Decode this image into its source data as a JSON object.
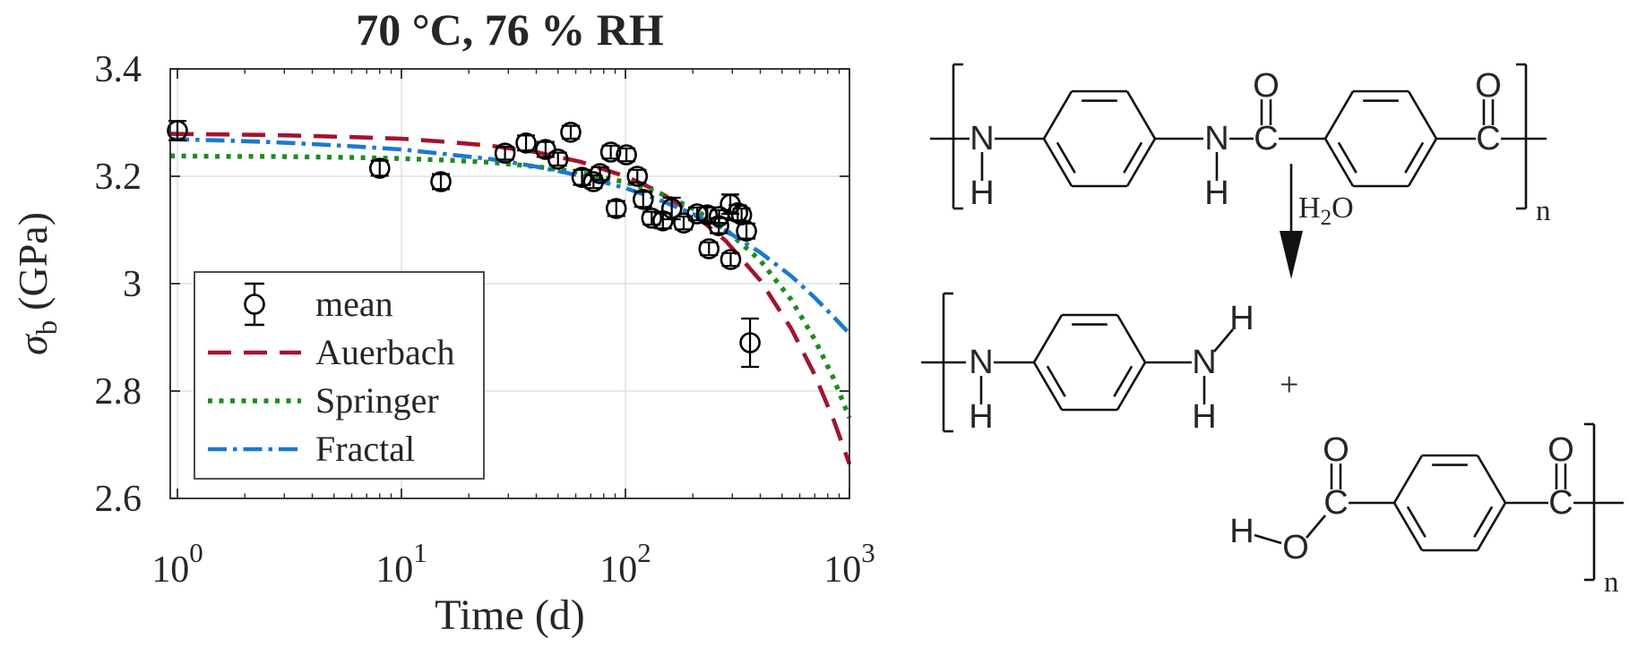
{
  "figure": {
    "kind": "scientific-figure",
    "panels": [
      "strength-vs-time-plot",
      "hydrolysis-reaction-scheme"
    ]
  },
  "chart_data": {
    "type": "scatter",
    "title": "70 °C, 76 % RH",
    "xlabel": "Time (d)",
    "ylabel": "σ_b (GPa)",
    "ylabel_parts": {
      "sigma": "σ",
      "sub": "b",
      "units": "(GPa)"
    },
    "x_scale": "log",
    "xlim": [
      0.93,
      1000
    ],
    "ylim": [
      2.6,
      3.4
    ],
    "grid": true,
    "x_tick_labels": [
      {
        "base": "10",
        "exp": "0",
        "value": 1
      },
      {
        "base": "10",
        "exp": "1",
        "value": 10
      },
      {
        "base": "10",
        "exp": "2",
        "value": 100
      },
      {
        "base": "10",
        "exp": "3",
        "value": 1000
      }
    ],
    "y_tick_labels": [
      "3.4",
      "3.2",
      "3",
      "2.8",
      "2.6"
    ],
    "y_tick_values": [
      3.4,
      3.2,
      3.0,
      2.8,
      2.6
    ],
    "grid_y_values": [
      3.2,
      3.0,
      2.8
    ],
    "legend_position": "lower-left",
    "colors": {
      "grid": "#d9d9d9",
      "axis": "#262626",
      "marker": "#000000"
    },
    "series": [
      {
        "name": "mean",
        "type": "scatter-errorbar",
        "color": "#000000",
        "points": [
          [
            1.0,
            3.285,
            0.018
          ],
          [
            8,
            3.215,
            0.014
          ],
          [
            15,
            3.19,
            0.014
          ],
          [
            29,
            3.243,
            0.012
          ],
          [
            36,
            3.262,
            0.014
          ],
          [
            44,
            3.25,
            0.014
          ],
          [
            50,
            3.232,
            0.012
          ],
          [
            57,
            3.282,
            0.012
          ],
          [
            64,
            3.198,
            0.014
          ],
          [
            72,
            3.19,
            0.012
          ],
          [
            77,
            3.205,
            0.012
          ],
          [
            86,
            3.245,
            0.012
          ],
          [
            91,
            3.14,
            0.014
          ],
          [
            101,
            3.24,
            0.012
          ],
          [
            113,
            3.2,
            0.012
          ],
          [
            120,
            3.157,
            0.014
          ],
          [
            131,
            3.122,
            0.012
          ],
          [
            147,
            3.117,
            0.014
          ],
          [
            161,
            3.14,
            0.02
          ],
          [
            182,
            3.113,
            0.012
          ],
          [
            209,
            3.13,
            0.012
          ],
          [
            232,
            3.128,
            0.014
          ],
          [
            236,
            3.065,
            0.012
          ],
          [
            261,
            3.108,
            0.014
          ],
          [
            262,
            3.125,
            0.012
          ],
          [
            294,
            3.148,
            0.018
          ],
          [
            295,
            3.045,
            0.012
          ],
          [
            317,
            3.132,
            0.014
          ],
          [
            330,
            3.128,
            0.012
          ],
          [
            347,
            3.098,
            0.014
          ],
          [
            360,
            2.89,
            0.045
          ]
        ]
      },
      {
        "name": "Auerbach",
        "type": "line",
        "style": "dashed",
        "color": "#A2142F",
        "points": [
          [
            0.93,
            3.279
          ],
          [
            1.5,
            3.278
          ],
          [
            2.5,
            3.277
          ],
          [
            4,
            3.275
          ],
          [
            6,
            3.273
          ],
          [
            10,
            3.27
          ],
          [
            16,
            3.264
          ],
          [
            25,
            3.257
          ],
          [
            40,
            3.245
          ],
          [
            63,
            3.227
          ],
          [
            100,
            3.2
          ],
          [
            140,
            3.172
          ],
          [
            200,
            3.131
          ],
          [
            280,
            3.08
          ],
          [
            400,
            3.006
          ],
          [
            550,
            2.916
          ],
          [
            700,
            2.83
          ],
          [
            850,
            2.746
          ],
          [
            1000,
            2.664
          ]
        ]
      },
      {
        "name": "Springer",
        "type": "line",
        "style": "dotted",
        "color": "#1E8C1E",
        "points": [
          [
            0.93,
            3.238
          ],
          [
            1.5,
            3.237
          ],
          [
            2.5,
            3.237
          ],
          [
            4,
            3.236
          ],
          [
            6,
            3.235
          ],
          [
            10,
            3.233
          ],
          [
            16,
            3.23
          ],
          [
            25,
            3.226
          ],
          [
            40,
            3.218
          ],
          [
            63,
            3.207
          ],
          [
            100,
            3.189
          ],
          [
            140,
            3.17
          ],
          [
            200,
            3.14
          ],
          [
            280,
            3.101
          ],
          [
            400,
            3.043
          ],
          [
            550,
            2.97
          ],
          [
            700,
            2.896
          ],
          [
            850,
            2.823
          ],
          [
            1000,
            2.75
          ]
        ]
      },
      {
        "name": "Fractal",
        "type": "line",
        "style": "dashdot",
        "color": "#1B79CE",
        "points": [
          [
            0.93,
            3.269
          ],
          [
            1.5,
            3.267
          ],
          [
            2.5,
            3.264
          ],
          [
            4,
            3.26
          ],
          [
            6,
            3.256
          ],
          [
            10,
            3.25
          ],
          [
            16,
            3.241
          ],
          [
            25,
            3.232
          ],
          [
            40,
            3.218
          ],
          [
            63,
            3.201
          ],
          [
            100,
            3.178
          ],
          [
            140,
            3.157
          ],
          [
            200,
            3.13
          ],
          [
            280,
            3.099
          ],
          [
            400,
            3.058
          ],
          [
            550,
            3.014
          ],
          [
            700,
            2.974
          ],
          [
            850,
            2.938
          ],
          [
            1000,
            2.907
          ]
        ]
      }
    ]
  },
  "chemistry": {
    "description": "Hydrolysis of poly(p-phenylene terephthalamide): amide chain + H2O gives amine-terminated chain + carboxylic-acid-terminated chain",
    "atom_labels": {
      "N": "N",
      "H": "H",
      "C": "C",
      "O": "O"
    },
    "water": {
      "h": "H",
      "sub": "2",
      "o": "O"
    },
    "repeat_subscript": "n",
    "plus_sign": "+"
  }
}
